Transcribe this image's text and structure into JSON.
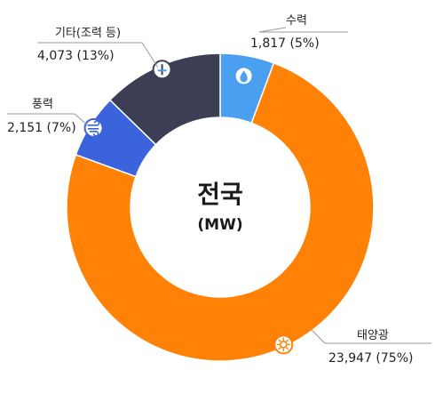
{
  "chart_data": {
    "type": "donut",
    "title": "전국",
    "unit": "(MW)",
    "slices": [
      {
        "name": "수력",
        "value": 1817,
        "label": "1,817 (5%)",
        "color": "#4a9ff0",
        "icon": "water-drop-icon"
      },
      {
        "name": "태양광",
        "value": 23947,
        "label": "23,947 (75%)",
        "color": "#ff8206",
        "icon": "sun-icon"
      },
      {
        "name": "풍력",
        "value": 2151,
        "label": "2,151 (7%)",
        "color": "#3a63dc",
        "icon": "wind-icon"
      },
      {
        "name": "기타(조력 등)",
        "value": 4073,
        "label": "4,073 (13%)",
        "color": "#3c3f54",
        "icon": "tide-gauge-icon"
      }
    ]
  }
}
